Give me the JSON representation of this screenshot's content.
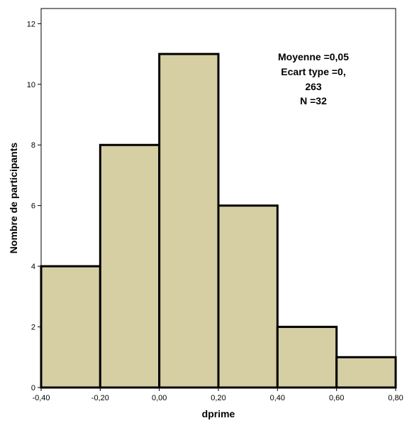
{
  "chart_data": {
    "type": "bar",
    "subtype": "histogram",
    "bins": [
      {
        "from": -0.4,
        "to": -0.2,
        "count": 4
      },
      {
        "from": -0.2,
        "to": 0.0,
        "count": 8
      },
      {
        "from": 0.0,
        "to": 0.2,
        "count": 11
      },
      {
        "from": 0.2,
        "to": 0.4,
        "count": 6
      },
      {
        "from": 0.4,
        "to": 0.6,
        "count": 2
      },
      {
        "from": 0.6,
        "to": 0.8,
        "count": 1
      }
    ],
    "x_ticks": [
      "-0,40",
      "-0,20",
      "0,00",
      "0,20",
      "0,40",
      "0,60",
      "0,80"
    ],
    "y_ticks": [
      "0",
      "2",
      "4",
      "6",
      "8",
      "10",
      "12"
    ],
    "xlim": [
      -0.4,
      0.8
    ],
    "ylim": [
      0,
      12.5
    ],
    "xlabel": "dprime",
    "ylabel": "Nombre de participants",
    "stats": [
      "Moyenne =0,05",
      "Ecart type =0,",
      "263",
      "N =32"
    ],
    "grid": false,
    "colors": {
      "bar_fill": "#d6cfa3",
      "bar_stroke": "#000000",
      "plot_background": "#ffffff",
      "frame": "#000000"
    }
  }
}
